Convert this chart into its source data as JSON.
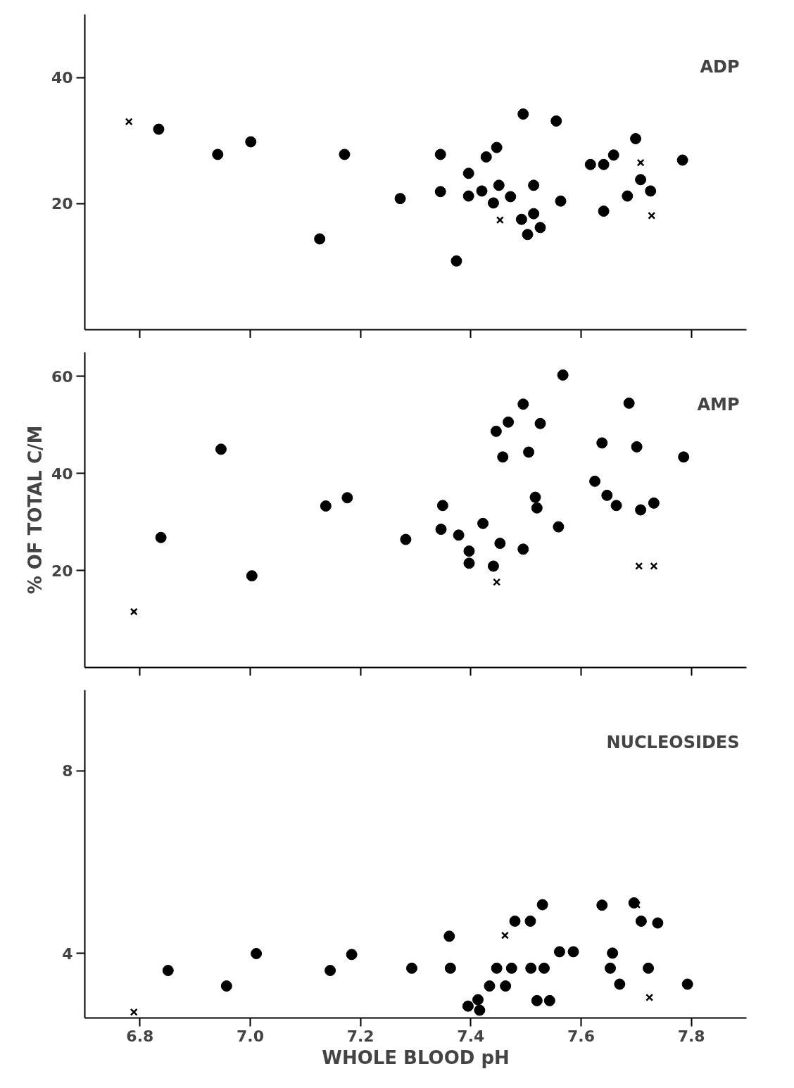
{
  "chart_data": [
    {
      "type": "scatter",
      "title": "ADP",
      "xlim": [
        6.7,
        7.9
      ],
      "ylim": [
        0,
        50
      ],
      "tick_labels": "y",
      "grid": false,
      "xticks": [
        {
          "value": 6.8,
          "label": null
        },
        {
          "value": 7.0,
          "label": null
        },
        {
          "value": 7.2,
          "label": null
        },
        {
          "value": 7.4,
          "label": null
        },
        {
          "value": 7.6,
          "label": null
        },
        {
          "value": 7.8,
          "label": null
        }
      ],
      "yticks": [
        20,
        40
      ],
      "series": [
        {
          "marker": "circle",
          "color": "#000000",
          "x": [
            6.834,
            6.941,
            7.001,
            7.126,
            7.171,
            7.272,
            7.345,
            7.345,
            7.374,
            7.396,
            7.396,
            7.42,
            7.428,
            7.441,
            7.447,
            7.451,
            7.472,
            7.492,
            7.495,
            7.503,
            7.514,
            7.514,
            7.526,
            7.555,
            7.563,
            7.617,
            7.641,
            7.659,
            7.641,
            7.684,
            7.699,
            7.708,
            7.726,
            7.784
          ],
          "values": [
            31.8,
            27.8,
            29.8,
            14.4,
            27.8,
            20.8,
            27.8,
            21.9,
            10.9,
            24.8,
            21.2,
            22.0,
            27.4,
            20.1,
            28.9,
            22.9,
            21.1,
            17.5,
            34.2,
            15.1,
            22.9,
            18.4,
            16.2,
            33.1,
            20.4,
            26.2,
            26.2,
            27.7,
            18.8,
            21.2,
            30.3,
            23.8,
            22.0,
            26.9
          ]
        },
        {
          "marker": "cross",
          "color": "#000000",
          "x": [
            6.78,
            7.453,
            7.708,
            7.728
          ],
          "values": [
            33.0,
            17.4,
            26.5,
            18.1
          ]
        }
      ]
    },
    {
      "type": "scatter",
      "title": "AMP",
      "ylabel": "% OF TOTAL C/M",
      "xlim": [
        6.7,
        7.9
      ],
      "ylim": [
        0,
        65
      ],
      "tick_labels": "y",
      "grid": false,
      "xticks": [
        {
          "value": 6.8,
          "label": null
        },
        {
          "value": 7.0,
          "label": null
        },
        {
          "value": 7.2,
          "label": null
        },
        {
          "value": 7.4,
          "label": null
        },
        {
          "value": 7.6,
          "label": null
        },
        {
          "value": 7.8,
          "label": null
        }
      ],
      "yticks": [
        20,
        40,
        60
      ],
      "series": [
        {
          "marker": "circle",
          "color": "#000000",
          "x": [
            6.838,
            6.947,
            7.003,
            7.137,
            7.176,
            7.282,
            7.349,
            7.346,
            7.378,
            7.397,
            7.397,
            7.422,
            7.441,
            7.446,
            7.453,
            7.458,
            7.468,
            7.495,
            7.495,
            7.505,
            7.517,
            7.52,
            7.526,
            7.559,
            7.567,
            7.625,
            7.638,
            7.647,
            7.664,
            7.687,
            7.701,
            7.708,
            7.732,
            7.786
          ],
          "values": [
            26.8,
            45.0,
            18.9,
            33.3,
            35.0,
            26.4,
            33.4,
            28.5,
            27.3,
            24.0,
            21.5,
            29.7,
            20.9,
            48.7,
            25.6,
            43.4,
            50.6,
            54.3,
            24.4,
            44.4,
            35.1,
            32.9,
            50.3,
            29.0,
            60.3,
            38.4,
            46.3,
            35.5,
            33.4,
            54.5,
            45.5,
            32.5,
            33.9,
            43.4
          ]
        },
        {
          "marker": "cross",
          "color": "#000000",
          "x": [
            6.789,
            7.447,
            7.705,
            7.732
          ],
          "values": [
            11.5,
            17.6,
            20.9,
            20.9
          ]
        }
      ]
    },
    {
      "type": "scatter",
      "title": "NUCLEOSIDES",
      "xlabel": "WHOLE BLOOD pH",
      "xlim": [
        6.7,
        7.9
      ],
      "ylim": [
        2.59,
        9.77
      ],
      "grid": false,
      "xticks": [
        {
          "value": 6.8,
          "label": "6.8"
        },
        {
          "value": 7.0,
          "label": "7.0"
        },
        {
          "value": 7.2,
          "label": "7.2"
        },
        {
          "value": 7.4,
          "label": "7.4"
        },
        {
          "value": 7.6,
          "label": "7.6"
        },
        {
          "value": 7.8,
          "label": "7.8"
        }
      ],
      "yticks": [
        4,
        8
      ],
      "series": [
        {
          "marker": "circle",
          "color": "#000000",
          "x": [
            6.851,
            6.957,
            7.011,
            7.145,
            7.184,
            7.293,
            7.361,
            7.363,
            7.395,
            7.413,
            7.416,
            7.434,
            7.447,
            7.463,
            7.474,
            7.48,
            7.508,
            7.509,
            7.52,
            7.53,
            7.533,
            7.543,
            7.561,
            7.586,
            7.638,
            7.653,
            7.657,
            7.67,
            7.696,
            7.709,
            7.722,
            7.739,
            7.793
          ],
          "values": [
            3.63,
            3.29,
            4.0,
            3.63,
            3.98,
            3.68,
            4.38,
            3.68,
            2.85,
            2.99,
            2.76,
            3.29,
            3.68,
            3.29,
            3.68,
            4.71,
            4.71,
            3.68,
            2.97,
            5.07,
            3.68,
            2.97,
            4.04,
            4.04,
            5.06,
            3.68,
            4.01,
            3.33,
            5.11,
            4.71,
            3.68,
            4.67,
            3.33
          ]
        },
        {
          "marker": "cross",
          "color": "#000000",
          "x": [
            6.789,
            7.462,
            7.701,
            7.724
          ],
          "values": [
            2.72,
            4.4,
            5.07,
            3.04
          ]
        }
      ]
    }
  ]
}
